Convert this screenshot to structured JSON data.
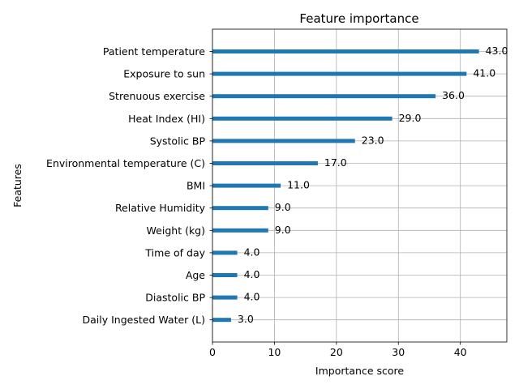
{
  "chart_data": {
    "type": "bar",
    "orientation": "horizontal",
    "title": "Feature importance",
    "xlabel": "Importance score",
    "ylabel": "Features",
    "xlim": [
      0,
      47.5
    ],
    "xticks": [
      0,
      10,
      20,
      30,
      40
    ],
    "grid": true,
    "bar_color": "#1f77b4",
    "categories": [
      "Patient temperature",
      "Exposure to sun",
      "Strenuous exercise",
      "Heat Index (HI)",
      "Systolic BP",
      "Environmental temperature (C)",
      "BMI",
      "Relative Humidity",
      "Weight (kg)",
      "Time of day",
      "Age",
      "Diastolic BP",
      "Daily Ingested Water (L)"
    ],
    "values": [
      43.0,
      41.0,
      36.0,
      29.0,
      23.0,
      17.0,
      11.0,
      9.0,
      9.0,
      4.0,
      4.0,
      4.0,
      3.0
    ],
    "value_labels": [
      "43.0",
      "41.0",
      "36.0",
      "29.0",
      "23.0",
      "17.0",
      "11.0",
      "9.0",
      "9.0",
      "4.0",
      "4.0",
      "4.0",
      "3.0"
    ]
  }
}
